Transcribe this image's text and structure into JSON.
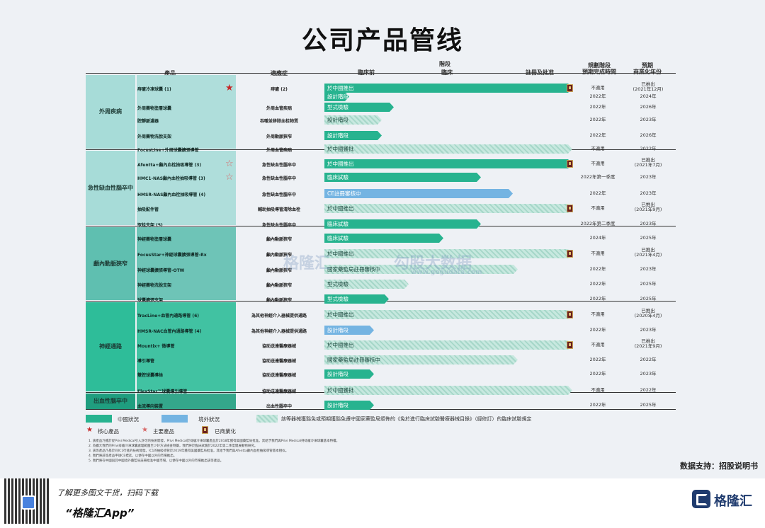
{
  "title": "公司产品管线",
  "headers": {
    "product": "產品",
    "indication": "適應症",
    "stage": "階段",
    "preclinical": "臨床前",
    "clinical": "臨床",
    "registration": "註冊及批准",
    "planned_stage": [
      "規劃階段",
      "預期完成時間"
    ],
    "expected": [
      "預期",
      "商業化年份"
    ]
  },
  "chart_data": {
    "type": "table",
    "groups": [
      {
        "category": "外周疾病",
        "color": "#a7dcd8"
      },
      {
        "category": "急性缺血性腦卒中",
        "color": "#a7dcd8"
      },
      {
        "category": "顱內動脈狹窄",
        "color": "#5fbfb0"
      },
      {
        "category": "神經通路",
        "color": "#2ebd99"
      },
      {
        "category": "出血性腦卒中",
        "color": "#1f9e7f"
      }
    ],
    "rows": [
      {
        "group": 0,
        "product": "痔瘡冷凍球囊 (1)",
        "indication": "痔瘡 (2)",
        "bar": "cn",
        "label": "於中國推出",
        "stage_end": 1.0,
        "commercial": true,
        "star": "solid",
        "planned": "不適用",
        "year": [
          "已推出",
          "(2021年12月)"
        ]
      },
      {
        "group": 0,
        "product": "",
        "indication": "",
        "bar": "cn",
        "label": "設計階段",
        "stage_end": 0.1,
        "commercial": false,
        "star": "",
        "planned": "2022年",
        "year": [
          "2024年"
        ]
      },
      {
        "group": 0,
        "product": "外周藥物塗層球囊",
        "indication": "外周血管疾病",
        "bar": "cn",
        "label": "型式檢驗",
        "stage_end": 0.28,
        "commercial": false,
        "star": "",
        "planned": "2022年",
        "year": [
          "2026年"
        ]
      },
      {
        "group": 0,
        "product": "腔靜脈濾器",
        "indication": "吞噬並移除血栓物質",
        "bar": "ex",
        "label": "設計階段",
        "stage_end": 0.23,
        "commercial": false,
        "star": "",
        "planned": "2022年",
        "year": [
          "2023年"
        ]
      },
      {
        "group": 0,
        "product": "外周藥物洗脫支架",
        "indication": "外周動脈狹窄",
        "bar": "cn",
        "label": "設計階段",
        "stage_end": 0.23,
        "commercial": false,
        "star": "",
        "planned": "2022年",
        "year": [
          "2026年"
        ]
      },
      {
        "group": 0,
        "product": "FocusLine+外周球囊擴張導管",
        "indication": "外周血管疾病",
        "bar": "ex",
        "label": "於中國獲批",
        "stage_end": 1.0,
        "commercial": false,
        "star": "",
        "planned": "不適用",
        "year": [
          "2022年"
        ]
      },
      {
        "group": 1,
        "product": "Afentta+顱內血栓抽吸導管 (3)",
        "indication": "急性缺血性腦卒中",
        "bar": "cn",
        "label": "於中國推出",
        "stage_end": 1.0,
        "commercial": true,
        "star": "hollow",
        "planned": "不適用",
        "year": [
          "已推出",
          "(2021年7月)"
        ]
      },
      {
        "group": 1,
        "product": "HMC1-NAS顱內血栓抽吸導管 (3)",
        "indication": "急性缺血性腦卒中",
        "bar": "cn",
        "label": "臨床試驗",
        "stage_end": 0.63,
        "commercial": false,
        "star": "hollow",
        "planned": "2022年第一季度",
        "year": [
          "2023年"
        ]
      },
      {
        "group": 1,
        "product": "HMSR-NAS顱內血栓抽吸導管 (4)",
        "indication": "急性缺血性腦卒中",
        "bar": "os",
        "label": "CE註冊審核中",
        "stage_end": 0.76,
        "commercial": false,
        "star": "",
        "planned": "2022年",
        "year": [
          "2023年"
        ]
      },
      {
        "group": 1,
        "product": "抽吸配件管",
        "indication": "輔助抽吸導管清除血栓",
        "bar": "ex",
        "label": "於中國推出",
        "stage_end": 1.0,
        "commercial": true,
        "star": "",
        "planned": "不適用",
        "year": [
          "已推出",
          "(2021年9月)"
        ]
      },
      {
        "group": 1,
        "product": "取栓支架 (5)",
        "indication": "急性缺血性腦卒中",
        "bar": "cn",
        "label": "臨床試驗",
        "stage_end": 0.63,
        "commercial": false,
        "star": "",
        "planned": "2022年第二季度",
        "year": [
          "2023年"
        ]
      },
      {
        "group": 2,
        "product": "神經藥物塗層球囊",
        "indication": "顱內動脈狹窄",
        "bar": "cn",
        "label": "臨床試驗",
        "stage_end": 0.48,
        "commercial": false,
        "star": "",
        "planned": "2024年",
        "year": [
          "2025年"
        ]
      },
      {
        "group": 2,
        "product": "FocusStar+神經球囊擴張導管-Rx",
        "indication": "顱內動脈狹窄",
        "bar": "ex",
        "label": "於中國推出",
        "stage_end": 1.0,
        "commercial": true,
        "star": "",
        "planned": "不適用",
        "year": [
          "已推出",
          "(2021年4月)"
        ]
      },
      {
        "group": 2,
        "product": "神經球囊擴張導管-OTW",
        "indication": "顱內動脈狹窄",
        "bar": "ex",
        "label": "國家藥監局註冊審核中",
        "stage_end": 0.78,
        "commercial": false,
        "star": "",
        "planned": "2022年",
        "year": [
          "2023年"
        ]
      },
      {
        "group": 2,
        "product": "神經藥物洗脫支架",
        "indication": "顱內動脈狹窄",
        "bar": "ex",
        "label": "型式檢驗",
        "stage_end": 0.34,
        "commercial": false,
        "star": "",
        "planned": "2022年",
        "year": [
          "2025年"
        ]
      },
      {
        "group": 2,
        "product": "球囊擴張支架",
        "indication": "顱內動脈狹窄",
        "bar": "cn",
        "label": "型式檢驗",
        "stage_end": 0.26,
        "commercial": false,
        "star": "",
        "planned": "2022年",
        "year": [
          "2025年"
        ]
      },
      {
        "group": 3,
        "product": "TracLine+血管內通路導管 (6)",
        "indication": "為其他神經介入器械提供通路",
        "bar": "ex",
        "label": "於中國推出",
        "stage_end": 1.0,
        "commercial": true,
        "star": "",
        "planned": "不適用",
        "year": [
          "已推出",
          "(2020年4月)"
        ]
      },
      {
        "group": 3,
        "product": "HMSR-NAC血管內通路導管 (4)",
        "indication": "為其他神經介入器械提供通路",
        "bar": "os",
        "label": "設計階段",
        "stage_end": 0.2,
        "commercial": false,
        "star": "",
        "planned": "2022年",
        "year": [
          "2023年"
        ]
      },
      {
        "group": 3,
        "product": "Mountix+ 微導管",
        "indication": "協助送達醫療器械",
        "bar": "ex",
        "label": "於中國推出",
        "stage_end": 1.0,
        "commercial": true,
        "star": "",
        "planned": "不適用",
        "year": [
          "已推出",
          "(2021年9月)"
        ]
      },
      {
        "group": 3,
        "product": "導引導管",
        "indication": "協助送達醫療器械",
        "bar": "ex",
        "label": "國家藥監局註冊審核中",
        "stage_end": 0.78,
        "commercial": false,
        "star": "",
        "planned": "2022年",
        "year": [
          "2022年"
        ]
      },
      {
        "group": 3,
        "product": "雙腔球囊導絲",
        "indication": "協助送達醫療器械",
        "bar": "cn",
        "label": "設計階段",
        "stage_end": 0.2,
        "commercial": false,
        "star": "",
        "planned": "2022年",
        "year": [
          "2023年"
        ]
      },
      {
        "group": 3,
        "product": "FlexStar™球囊導引導管",
        "indication": "協助送達醫療器械",
        "bar": "ex",
        "label": "於中國獲批",
        "stage_end": 1.0,
        "commercial": false,
        "star": "",
        "planned": "不適用",
        "year": [
          "2022年"
        ]
      },
      {
        "group": 4,
        "product": "血流導向裝置",
        "indication": "出血性腦卒中",
        "bar": "cn",
        "label": "設計階段",
        "stage_end": 0.2,
        "commercial": false,
        "star": "",
        "planned": "2022年",
        "year": [
          "2025年"
        ]
      }
    ]
  },
  "legend": {
    "china": "中國狀況",
    "overseas": "境外狀況",
    "exempt": "該等器械獲豁免或預期獲豁免遵守國家藥監局頒佈的《免於進行臨床試驗醫療器械目錄》（經修訂）的臨床試驗規定",
    "core": "核心產品",
    "major": "主要產品",
    "commercialized": "已商業化"
  },
  "notes": [
    "1. 該產品乃獲於從Privi Medical引入許可的技術開發，Privi Medical於痔瘡冷凍球囊產品於2018年獲得美國藥監局批准。其給予我們與Privi Medical持痔瘡冷凍球囊基本特權。",
    "2. 為擴大我們的Privi痔瘡冷凍球囊處理範圍至少好方法檢查劑藥，我們將於臨床試驗於2022年第二季度開展動物研究。",
    "3. 該等產品乃基於同IC1行進的技術開發。IC1的抽吸導管於2019年獲得美國藥監局批准，其給予我們與Afentta顱內血栓抽吸導管基本相似。",
    "4. 我們將該等產品申請CE標誌，以便在中國以外的市場推出。",
    "5. 我們將在中國與其中國境外藥監局註冊批准中國市場，以便在中國以外的市場推出該等產品。"
  ],
  "source": "数据支持：招股说明书",
  "footer": {
    "text1": "了解更多图文干货，扫码下载",
    "text2": "“格隆汇App”",
    "brand": "格隆汇"
  },
  "watermark": {
    "brand": "格隆汇",
    "sub": "勾股大数据",
    "url": "www.gogudata.com"
  }
}
